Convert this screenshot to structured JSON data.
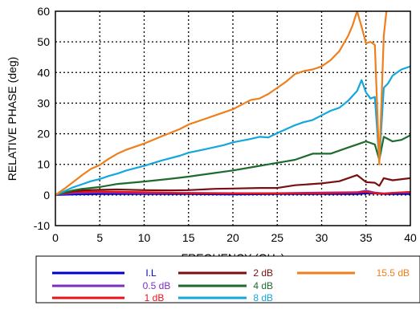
{
  "chart_data": {
    "type": "line",
    "title": "",
    "xlabel": "FREQUENCY (GHz)",
    "ylabel": "RELATIVE PHASE (deg)",
    "xlim": [
      0,
      40
    ],
    "ylim": [
      -10,
      60
    ],
    "xticks": [
      "0",
      "5",
      "10",
      "15",
      "20",
      "25",
      "30",
      "35",
      "40"
    ],
    "yticks": [
      "-10",
      "0",
      "10",
      "20",
      "30",
      "40",
      "50",
      "60"
    ],
    "grid": "dotted",
    "legend_position": "bottom",
    "series": [
      {
        "name": "I.L",
        "color": "#0000cc",
        "x": [
          0,
          1,
          2,
          5,
          10,
          15,
          20,
          25,
          30,
          34,
          35,
          36,
          37,
          38,
          40
        ],
        "y": [
          0,
          0.1,
          0.2,
          0.3,
          0.3,
          0.3,
          0.2,
          0.3,
          0.3,
          0.3,
          0.5,
          0.5,
          0.3,
          0.3,
          0.3
        ]
      },
      {
        "name": "0.5 dB",
        "color": "#7b2fbf",
        "x": [
          0,
          1,
          2,
          5,
          10,
          15,
          20,
          25,
          30,
          34,
          35,
          36,
          37,
          38,
          40
        ],
        "y": [
          0,
          0.3,
          0.6,
          0.8,
          0.6,
          0.7,
          0.6,
          0.6,
          0.8,
          0.9,
          1.4,
          0.8,
          0.5,
          0.7,
          0.9
        ]
      },
      {
        "name": "1 dB",
        "color": "#e8141b",
        "x": [
          0,
          1,
          2,
          5,
          10,
          15,
          20,
          25,
          30,
          34,
          35,
          36,
          37,
          38,
          40
        ],
        "y": [
          0,
          0.5,
          1.0,
          1.1,
          0.9,
          0.6,
          0.5,
          0.5,
          0.6,
          0.8,
          1.0,
          0.6,
          0.4,
          0.7,
          1.0
        ]
      },
      {
        "name": "2 dB",
        "color": "#7a0f12",
        "x": [
          0,
          1,
          2,
          3,
          5,
          7,
          10,
          13,
          15,
          18,
          20,
          23,
          25,
          27,
          30,
          32,
          34,
          35,
          36,
          36.5,
          37,
          38,
          40
        ],
        "y": [
          0,
          0.7,
          1.2,
          1.5,
          1.7,
          1.8,
          1.6,
          1.5,
          1.6,
          2.0,
          2.1,
          2.3,
          2.3,
          3.2,
          3.8,
          4.5,
          6.5,
          4.2,
          4.0,
          3.0,
          5.5,
          4.8,
          5.5
        ]
      },
      {
        "name": "4 dB",
        "color": "#1e6b2e",
        "x": [
          0,
          1,
          2,
          3,
          4,
          5,
          7,
          10,
          13,
          15,
          17,
          20,
          22,
          24,
          25,
          26,
          27,
          28,
          29,
          30,
          31,
          32,
          33,
          34,
          35,
          35.5,
          36,
          36.5,
          37,
          38,
          39,
          40
        ],
        "y": [
          0,
          0.8,
          1.5,
          2.0,
          2.3,
          2.6,
          3.6,
          4.4,
          5.3,
          6.0,
          6.8,
          8.0,
          9.0,
          10.0,
          10.5,
          11.0,
          11.5,
          12.5,
          13.5,
          13.5,
          13.5,
          14.5,
          15.5,
          16.5,
          17.5,
          17.0,
          16.5,
          11.5,
          19.0,
          17.5,
          18.0,
          19.5
        ]
      },
      {
        "name": "8 dB",
        "color": "#13a7dd",
        "x": [
          0,
          1,
          2,
          3,
          4,
          5,
          6,
          7,
          8,
          10,
          12,
          14,
          15,
          17,
          19,
          20,
          22,
          23,
          24,
          25,
          27,
          28,
          29,
          30,
          31,
          32,
          33,
          34,
          34.5,
          35,
          35.5,
          36,
          36.5,
          37,
          37.5,
          38,
          39,
          40
        ],
        "y": [
          0,
          1.2,
          2.5,
          3.5,
          4.5,
          5.2,
          6.2,
          7.0,
          8.0,
          9.5,
          11.3,
          12.8,
          13.8,
          15.0,
          16.3,
          17.2,
          18.3,
          19.0,
          18.8,
          20.2,
          22.8,
          23.8,
          24.5,
          26.0,
          27.5,
          28.5,
          30.8,
          34.0,
          37.5,
          33.5,
          31.5,
          32.0,
          11.0,
          35.0,
          36.5,
          39.0,
          41.0,
          42.0
        ]
      },
      {
        "name": "15.5 dB",
        "color": "#ef7f1d",
        "x": [
          0,
          1,
          2,
          3,
          4,
          5,
          6,
          7,
          8,
          10,
          12,
          14,
          15,
          16,
          18,
          20,
          21,
          22,
          23,
          24,
          25,
          26,
          27,
          28,
          29,
          30,
          31,
          32,
          33,
          33.5,
          34,
          34.5,
          35,
          35.5,
          36,
          36.5,
          37,
          37.3
        ],
        "y": [
          0,
          2.0,
          4.2,
          6.5,
          8.5,
          9.8,
          11.8,
          13.5,
          14.8,
          16.8,
          19.2,
          21.5,
          23.0,
          24.0,
          26.0,
          28.0,
          29.5,
          31.0,
          31.5,
          33.0,
          35.0,
          37.0,
          39.5,
          40.5,
          41.0,
          42.0,
          44.0,
          47.0,
          52.0,
          55.5,
          60.0,
          55.0,
          49.5,
          50.0,
          49.0,
          10.0,
          52.0,
          60.0
        ]
      }
    ]
  }
}
